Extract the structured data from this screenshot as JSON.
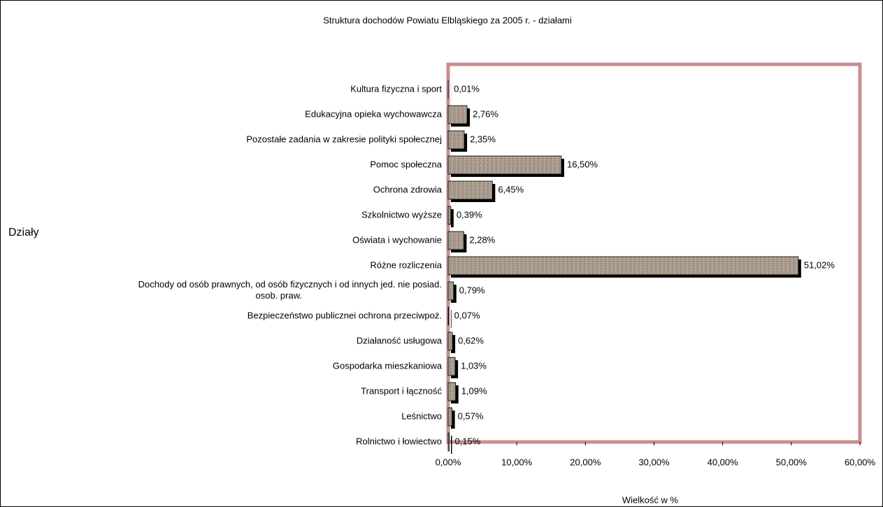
{
  "chart_data": {
    "type": "hbar",
    "title": "Struktura dochodów Powiatu Elbląskiego za 2005 r. - działami",
    "x_label": "Wielkość w %",
    "y_label": "Działy",
    "categories": [
      "Kultura fizyczna i sport",
      "Edukacyjna opieka wychowawcza",
      "Pozostałe zadania w zakresie polityki społecznej",
      "Pomoc społeczna",
      "Ochrona zdrowia",
      "Szkolnictwo wyższe",
      "Oświata i wychowanie",
      "Różne rozliczenia",
      "Dochody od osób prawnych, od osób fizycznych i od innych jed. nie posiad.\nosob. praw.",
      "Bezpieczeństwo publicznei ochrona przeciwpoż.",
      "Działaność usługowa",
      "Gospodarka mieszkaniowa",
      "Transport i łączność",
      "Leśnictwo",
      "Rolnictwo i łowiectwo"
    ],
    "values": [
      0.01,
      2.76,
      2.35,
      16.5,
      6.45,
      0.39,
      2.28,
      51.02,
      0.79,
      0.07,
      0.62,
      1.03,
      1.09,
      0.57,
      0.15
    ],
    "value_labels": [
      "0,01%",
      "2,76%",
      "2,35%",
      "16,50%",
      "6,45%",
      "0,39%",
      "2,28%",
      "51,02%",
      "0,79%",
      "0,07%",
      "0,62%",
      "1,03%",
      "1,09%",
      "0,57%",
      "0,15%"
    ],
    "color": "#a89a8c",
    "border_color": "#c88f8f",
    "xlim": [
      0,
      60
    ],
    "xticks": [
      {
        "value": 0,
        "label": "0,00%"
      },
      {
        "value": 10,
        "label": "10,00%"
      },
      {
        "value": 20,
        "label": "20,00%"
      },
      {
        "value": 30,
        "label": "30,00%"
      },
      {
        "value": 40,
        "label": "40,00%"
      },
      {
        "value": 50,
        "label": "50,00%"
      },
      {
        "value": 60,
        "label": "60,00%"
      }
    ]
  }
}
